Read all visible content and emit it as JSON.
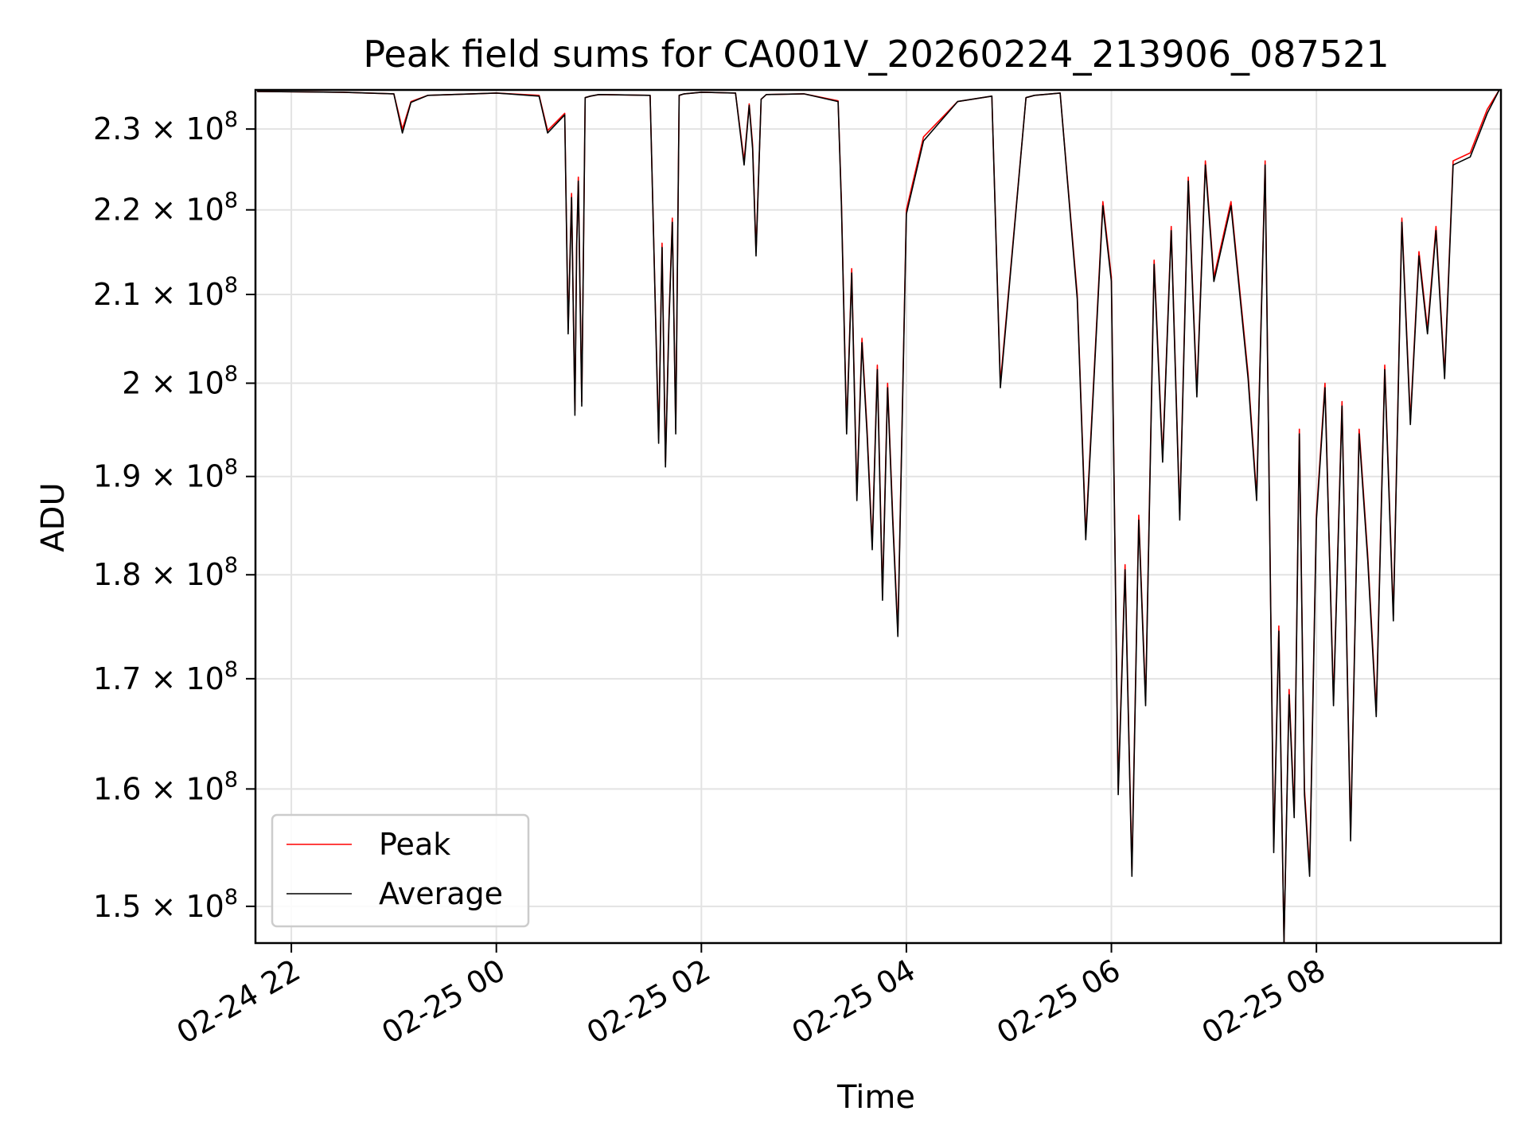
{
  "chart_data": {
    "type": "line",
    "title": "Peak field sums for CA001V_20260224_213906_087521",
    "xlabel": "Time",
    "ylabel": "ADU",
    "yscale": "log",
    "ylim": [
      147000000,
      235000000
    ],
    "xlim": [
      "2026-02-24 21:39",
      "2026-02-25 09:48"
    ],
    "grid": true,
    "legend_position": "lower-left",
    "x_ticks": [
      "02-24 22",
      "02-25 00",
      "02-25 02",
      "02-25 04",
      "02-25 06",
      "02-25 08"
    ],
    "x_tick_times": [
      "2026-02-24 22:00",
      "2026-02-25 00:00",
      "2026-02-25 02:00",
      "2026-02-25 04:00",
      "2026-02-25 06:00",
      "2026-02-25 08:00"
    ],
    "y_ticks": [
      {
        "value": 150000000,
        "mantissa": "1.5",
        "base": "10",
        "exp": "8"
      },
      {
        "value": 160000000,
        "mantissa": "1.6",
        "base": "10",
        "exp": "8"
      },
      {
        "value": 170000000,
        "mantissa": "1.7",
        "base": "10",
        "exp": "8"
      },
      {
        "value": 180000000,
        "mantissa": "1.8",
        "base": "10",
        "exp": "8"
      },
      {
        "value": 190000000,
        "mantissa": "1.9",
        "base": "10",
        "exp": "8"
      },
      {
        "value": 200000000,
        "mantissa": "2",
        "base": "10",
        "exp": "8"
      },
      {
        "value": 210000000,
        "mantissa": "2.1",
        "base": "10",
        "exp": "8"
      },
      {
        "value": 220000000,
        "mantissa": "2.2",
        "base": "10",
        "exp": "8"
      },
      {
        "value": 230000000,
        "mantissa": "2.3",
        "base": "10",
        "exp": "8"
      }
    ],
    "series": [
      {
        "name": "Peak",
        "color": "#ff0000",
        "x": [
          "2026-02-24 21:40",
          "2026-02-24 22:30",
          "2026-02-24 23:00",
          "2026-02-24 23:05",
          "2026-02-24 23:10",
          "2026-02-24 23:20",
          "2026-02-25 00:00",
          "2026-02-25 00:25",
          "2026-02-25 00:30",
          "2026-02-25 00:40",
          "2026-02-25 00:42",
          "2026-02-25 00:44",
          "2026-02-25 00:46",
          "2026-02-25 00:47",
          "2026-02-25 00:48",
          "2026-02-25 00:50",
          "2026-02-25 00:52",
          "2026-02-25 00:55",
          "2026-02-25 01:00",
          "2026-02-25 01:30",
          "2026-02-25 01:35",
          "2026-02-25 01:37",
          "2026-02-25 01:39",
          "2026-02-25 01:41",
          "2026-02-25 01:43",
          "2026-02-25 01:45",
          "2026-02-25 01:47",
          "2026-02-25 01:50",
          "2026-02-25 02:00",
          "2026-02-25 02:20",
          "2026-02-25 02:25",
          "2026-02-25 02:28",
          "2026-02-25 02:30",
          "2026-02-25 02:32",
          "2026-02-25 02:35",
          "2026-02-25 02:38",
          "2026-02-25 03:00",
          "2026-02-25 03:20",
          "2026-02-25 03:22",
          "2026-02-25 03:25",
          "2026-02-25 03:28",
          "2026-02-25 03:31",
          "2026-02-25 03:34",
          "2026-02-25 03:37",
          "2026-02-25 03:40",
          "2026-02-25 03:43",
          "2026-02-25 03:46",
          "2026-02-25 03:49",
          "2026-02-25 03:52",
          "2026-02-25 03:55",
          "2026-02-25 04:00",
          "2026-02-25 04:10",
          "2026-02-25 04:30",
          "2026-02-25 04:50",
          "2026-02-25 04:55",
          "2026-02-25 05:10",
          "2026-02-25 05:15",
          "2026-02-25 05:30",
          "2026-02-25 05:40",
          "2026-02-25 05:45",
          "2026-02-25 05:55",
          "2026-02-25 06:00",
          "2026-02-25 06:04",
          "2026-02-25 06:08",
          "2026-02-25 06:12",
          "2026-02-25 06:16",
          "2026-02-25 06:20",
          "2026-02-25 06:25",
          "2026-02-25 06:30",
          "2026-02-25 06:35",
          "2026-02-25 06:40",
          "2026-02-25 06:45",
          "2026-02-25 06:50",
          "2026-02-25 06:55",
          "2026-02-25 07:00",
          "2026-02-25 07:10",
          "2026-02-25 07:20",
          "2026-02-25 07:25",
          "2026-02-25 07:30",
          "2026-02-25 07:35",
          "2026-02-25 07:38",
          "2026-02-25 07:41",
          "2026-02-25 07:44",
          "2026-02-25 07:47",
          "2026-02-25 07:50",
          "2026-02-25 07:53",
          "2026-02-25 07:56",
          "2026-02-25 08:00",
          "2026-02-25 08:05",
          "2026-02-25 08:10",
          "2026-02-25 08:15",
          "2026-02-25 08:20",
          "2026-02-25 08:25",
          "2026-02-25 08:30",
          "2026-02-25 08:35",
          "2026-02-25 08:40",
          "2026-02-25 08:45",
          "2026-02-25 08:50",
          "2026-02-25 08:55",
          "2026-02-25 09:00",
          "2026-02-25 09:05",
          "2026-02-25 09:10",
          "2026-02-25 09:15",
          "2026-02-25 09:20",
          "2026-02-25 09:30",
          "2026-02-25 09:40",
          "2026-02-25 09:47"
        ],
        "y": [
          234800000,
          234700000,
          234500000,
          230000000,
          233500000,
          234300000,
          234600000,
          234300000,
          229800000,
          232000000,
          206000000,
          222000000,
          197000000,
          216000000,
          224000000,
          198000000,
          234000000,
          234200000,
          234400000,
          234300000,
          194000000,
          216000000,
          191500000,
          207000000,
          219000000,
          195000000,
          234300000,
          234500000,
          234700000,
          234600000,
          226000000,
          233200000,
          228000000,
          215000000,
          233800000,
          234400000,
          234500000,
          233600000,
          221000000,
          195000000,
          213000000,
          188000000,
          205000000,
          195000000,
          183000000,
          202000000,
          178000000,
          200000000,
          186000000,
          174500000,
          220000000,
          229000000,
          233500000,
          234200000,
          200000000,
          234000000,
          234300000,
          234600000,
          210000000,
          184000000,
          221000000,
          212000000,
          160000000,
          181000000,
          153000000,
          186000000,
          168000000,
          214000000,
          192000000,
          218000000,
          186000000,
          224000000,
          199000000,
          226000000,
          212000000,
          221000000,
          201000000,
          188000000,
          226000000,
          155000000,
          175000000,
          147000000,
          169000000,
          158000000,
          195000000,
          160000000,
          153000000,
          186000000,
          200000000,
          168000000,
          198000000,
          156000000,
          195000000,
          182000000,
          167000000,
          202000000,
          176000000,
          219000000,
          196000000,
          215000000,
          206000000,
          218000000,
          201000000,
          226000000,
          227000000,
          232500000,
          235000000
        ]
      },
      {
        "name": "Average",
        "color": "#000000",
        "x": [
          "2026-02-24 21:40",
          "2026-02-24 22:30",
          "2026-02-24 23:00",
          "2026-02-24 23:05",
          "2026-02-24 23:10",
          "2026-02-24 23:20",
          "2026-02-25 00:00",
          "2026-02-25 00:25",
          "2026-02-25 00:30",
          "2026-02-25 00:40",
          "2026-02-25 00:42",
          "2026-02-25 00:44",
          "2026-02-25 00:46",
          "2026-02-25 00:47",
          "2026-02-25 00:48",
          "2026-02-25 00:50",
          "2026-02-25 00:52",
          "2026-02-25 00:55",
          "2026-02-25 01:00",
          "2026-02-25 01:30",
          "2026-02-25 01:35",
          "2026-02-25 01:37",
          "2026-02-25 01:39",
          "2026-02-25 01:41",
          "2026-02-25 01:43",
          "2026-02-25 01:45",
          "2026-02-25 01:47",
          "2026-02-25 01:50",
          "2026-02-25 02:00",
          "2026-02-25 02:20",
          "2026-02-25 02:25",
          "2026-02-25 02:28",
          "2026-02-25 02:30",
          "2026-02-25 02:32",
          "2026-02-25 02:35",
          "2026-02-25 02:38",
          "2026-02-25 03:00",
          "2026-02-25 03:20",
          "2026-02-25 03:22",
          "2026-02-25 03:25",
          "2026-02-25 03:28",
          "2026-02-25 03:31",
          "2026-02-25 03:34",
          "2026-02-25 03:37",
          "2026-02-25 03:40",
          "2026-02-25 03:43",
          "2026-02-25 03:46",
          "2026-02-25 03:49",
          "2026-02-25 03:52",
          "2026-02-25 03:55",
          "2026-02-25 04:00",
          "2026-02-25 04:10",
          "2026-02-25 04:30",
          "2026-02-25 04:50",
          "2026-02-25 04:55",
          "2026-02-25 05:10",
          "2026-02-25 05:15",
          "2026-02-25 05:30",
          "2026-02-25 05:40",
          "2026-02-25 05:45",
          "2026-02-25 05:55",
          "2026-02-25 06:00",
          "2026-02-25 06:04",
          "2026-02-25 06:08",
          "2026-02-25 06:12",
          "2026-02-25 06:16",
          "2026-02-25 06:20",
          "2026-02-25 06:25",
          "2026-02-25 06:30",
          "2026-02-25 06:35",
          "2026-02-25 06:40",
          "2026-02-25 06:45",
          "2026-02-25 06:50",
          "2026-02-25 06:55",
          "2026-02-25 07:00",
          "2026-02-25 07:10",
          "2026-02-25 07:20",
          "2026-02-25 07:25",
          "2026-02-25 07:30",
          "2026-02-25 07:35",
          "2026-02-25 07:38",
          "2026-02-25 07:41",
          "2026-02-25 07:44",
          "2026-02-25 07:47",
          "2026-02-25 07:50",
          "2026-02-25 07:53",
          "2026-02-25 07:56",
          "2026-02-25 08:00",
          "2026-02-25 08:05",
          "2026-02-25 08:10",
          "2026-02-25 08:15",
          "2026-02-25 08:20",
          "2026-02-25 08:25",
          "2026-02-25 08:30",
          "2026-02-25 08:35",
          "2026-02-25 08:40",
          "2026-02-25 08:45",
          "2026-02-25 08:50",
          "2026-02-25 08:55",
          "2026-02-25 09:00",
          "2026-02-25 09:05",
          "2026-02-25 09:10",
          "2026-02-25 09:15",
          "2026-02-25 09:20",
          "2026-02-25 09:30",
          "2026-02-25 09:40",
          "2026-02-25 09:47"
        ],
        "y": [
          234800000,
          234700000,
          234500000,
          229500000,
          233400000,
          234300000,
          234600000,
          234200000,
          229500000,
          231800000,
          205500000,
          221500000,
          196500000,
          215500000,
          223500000,
          197500000,
          234000000,
          234200000,
          234400000,
          234300000,
          193500000,
          215500000,
          191000000,
          206500000,
          218500000,
          194500000,
          234300000,
          234500000,
          234700000,
          234600000,
          225500000,
          233000000,
          227500000,
          214500000,
          233800000,
          234400000,
          234500000,
          233500000,
          220500000,
          194500000,
          212500000,
          187500000,
          204500000,
          194500000,
          182500000,
          201500000,
          177500000,
          199500000,
          185500000,
          174000000,
          219500000,
          228500000,
          233500000,
          234200000,
          199500000,
          234000000,
          234300000,
          234600000,
          209500000,
          183500000,
          220500000,
          211500000,
          159500000,
          180500000,
          152500000,
          185500000,
          167500000,
          213500000,
          191500000,
          217500000,
          185500000,
          223500000,
          198500000,
          225500000,
          211500000,
          220500000,
          200500000,
          187500000,
          225500000,
          154500000,
          174500000,
          147000000,
          168500000,
          157500000,
          194500000,
          159500000,
          152500000,
          185500000,
          199500000,
          167500000,
          197500000,
          155500000,
          194500000,
          181500000,
          166500000,
          201500000,
          175500000,
          218500000,
          195500000,
          214500000,
          205500000,
          217500000,
          200500000,
          225500000,
          226500000,
          232000000,
          235000000
        ]
      }
    ]
  }
}
